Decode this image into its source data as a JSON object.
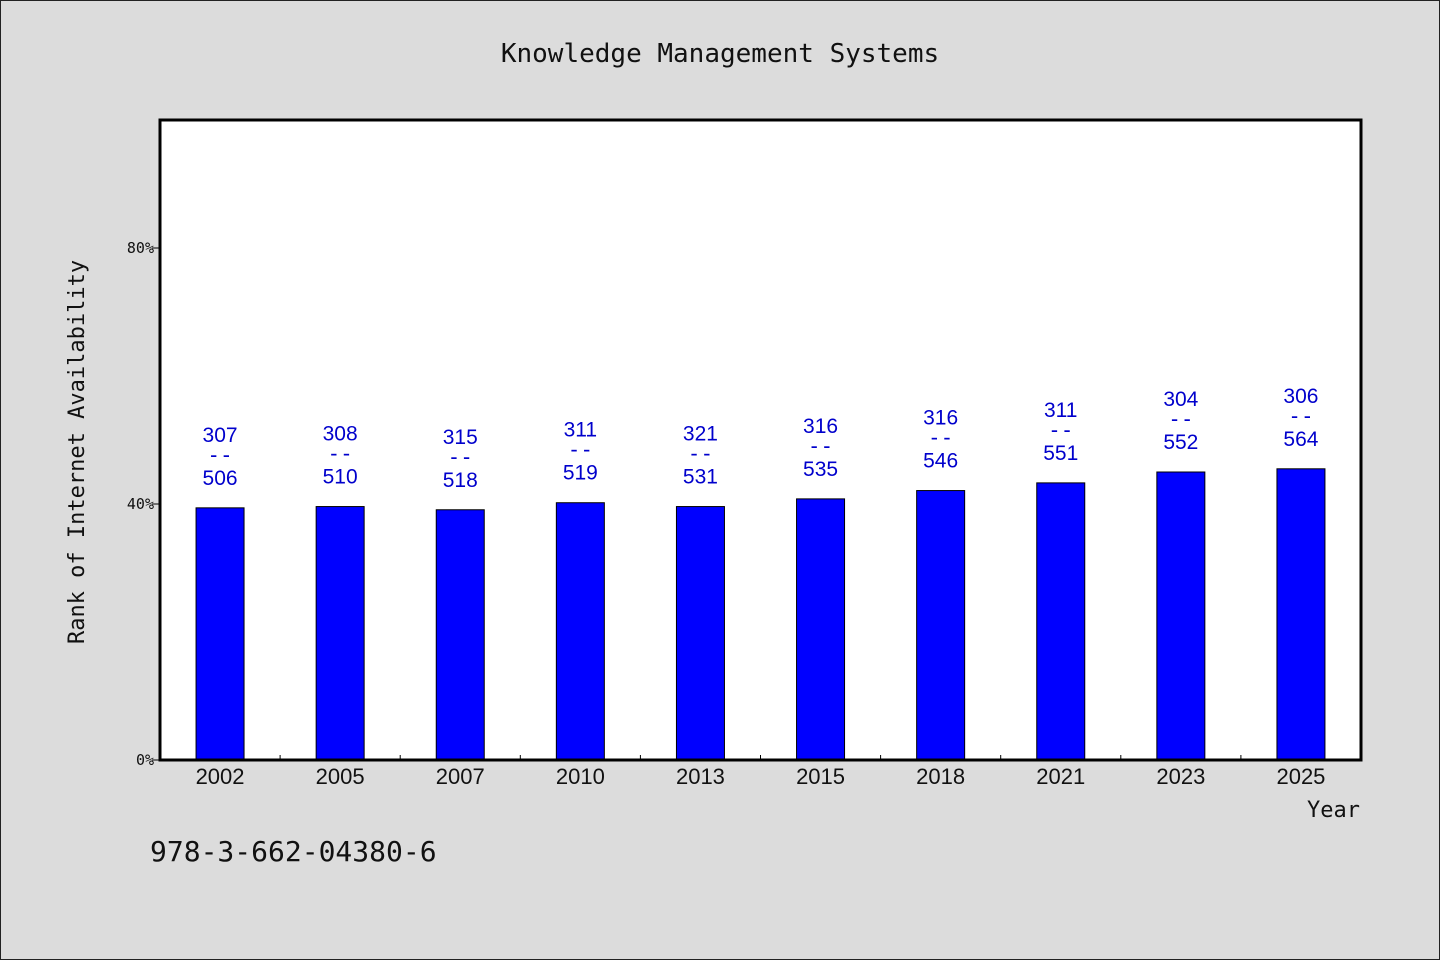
{
  "chart_data": {
    "type": "bar",
    "title": "Knowledge Management Systems",
    "xlabel": "Year",
    "ylabel": "Rank of Internet Availability",
    "ylim": [
      0,
      100
    ],
    "yticks": [
      "0%",
      "40%",
      "80%"
    ],
    "ytick_values": [
      0,
      40,
      80
    ],
    "categories": [
      "2002",
      "2005",
      "2007",
      "2010",
      "2013",
      "2015",
      "2018",
      "2021",
      "2023",
      "2025"
    ],
    "values": [
      39.4,
      39.6,
      39.1,
      40.2,
      39.6,
      40.8,
      42.1,
      43.3,
      45.0,
      45.5
    ],
    "labels": [
      {
        "top": "307",
        "sep": "--",
        "bottom": "506"
      },
      {
        "top": "308",
        "sep": "--",
        "bottom": "510"
      },
      {
        "top": "315",
        "sep": "--",
        "bottom": "518"
      },
      {
        "top": "311",
        "sep": "--",
        "bottom": "519"
      },
      {
        "top": "321",
        "sep": "--",
        "bottom": "531"
      },
      {
        "top": "316",
        "sep": "--",
        "bottom": "535"
      },
      {
        "top": "316",
        "sep": "--",
        "bottom": "546"
      },
      {
        "top": "311",
        "sep": "--",
        "bottom": "551"
      },
      {
        "top": "304",
        "sep": "--",
        "bottom": "552"
      },
      {
        "top": "306",
        "sep": "--",
        "bottom": "564"
      }
    ],
    "grid": false,
    "colors": {
      "bar": "#0000ff",
      "label": "#0000cc",
      "axis": "#000000",
      "plot_bg": "#ffffff",
      "page_bg": "#dcdcdc"
    }
  },
  "footer": {
    "isbn": "978-3-662-04380-6"
  }
}
